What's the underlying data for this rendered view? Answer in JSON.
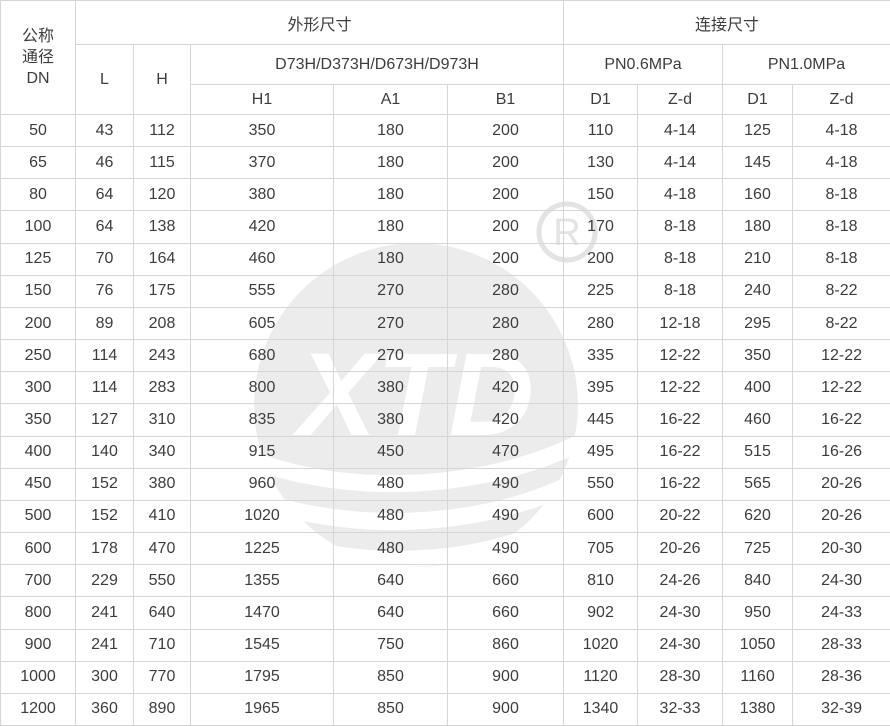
{
  "table": {
    "dn_header": "公称\n通径\nDN",
    "group_outline": "外形尺寸",
    "group_connection": "连接尺寸",
    "col_L": "L",
    "col_H": "H",
    "model_header": "D73H/D373H/D673H/D973H",
    "pn06_header": "PN0.6MPa",
    "pn10_header": "PN1.0MPa",
    "sub_cols": [
      "H1",
      "A1",
      "B1",
      "D1",
      "Z-d",
      "D1",
      "Z-d"
    ],
    "rows": [
      [
        "50",
        "43",
        "112",
        "350",
        "180",
        "200",
        "110",
        "4-14",
        "125",
        "4-18"
      ],
      [
        "65",
        "46",
        "115",
        "370",
        "180",
        "200",
        "130",
        "4-14",
        "145",
        "4-18"
      ],
      [
        "80",
        "64",
        "120",
        "380",
        "180",
        "200",
        "150",
        "4-18",
        "160",
        "8-18"
      ],
      [
        "100",
        "64",
        "138",
        "420",
        "180",
        "200",
        "170",
        "8-18",
        "180",
        "8-18"
      ],
      [
        "125",
        "70",
        "164",
        "460",
        "180",
        "200",
        "200",
        "8-18",
        "210",
        "8-18"
      ],
      [
        "150",
        "76",
        "175",
        "555",
        "270",
        "280",
        "225",
        "8-18",
        "240",
        "8-22"
      ],
      [
        "200",
        "89",
        "208",
        "605",
        "270",
        "280",
        "280",
        "12-18",
        "295",
        "8-22"
      ],
      [
        "250",
        "114",
        "243",
        "680",
        "270",
        "280",
        "335",
        "12-22",
        "350",
        "12-22"
      ],
      [
        "300",
        "114",
        "283",
        "800",
        "380",
        "420",
        "395",
        "12-22",
        "400",
        "12-22"
      ],
      [
        "350",
        "127",
        "310",
        "835",
        "380",
        "420",
        "445",
        "16-22",
        "460",
        "16-22"
      ],
      [
        "400",
        "140",
        "340",
        "915",
        "450",
        "470",
        "495",
        "16-22",
        "515",
        "16-26"
      ],
      [
        "450",
        "152",
        "380",
        "960",
        "480",
        "490",
        "550",
        "16-22",
        "565",
        "20-26"
      ],
      [
        "500",
        "152",
        "410",
        "1020",
        "480",
        "490",
        "600",
        "20-22",
        "620",
        "20-26"
      ],
      [
        "600",
        "178",
        "470",
        "1225",
        "480",
        "490",
        "705",
        "20-26",
        "725",
        "20-30"
      ],
      [
        "700",
        "229",
        "550",
        "1355",
        "640",
        "660",
        "810",
        "24-26",
        "840",
        "24-30"
      ],
      [
        "800",
        "241",
        "640",
        "1470",
        "640",
        "660",
        "902",
        "24-30",
        "950",
        "24-33"
      ],
      [
        "900",
        "241",
        "710",
        "1545",
        "750",
        "860",
        "1020",
        "24-30",
        "1050",
        "28-33"
      ],
      [
        "1000",
        "300",
        "770",
        "1795",
        "850",
        "900",
        "1120",
        "28-30",
        "1160",
        "28-36"
      ],
      [
        "1200",
        "360",
        "890",
        "1965",
        "850",
        "900",
        "1340",
        "32-33",
        "1380",
        "32-39"
      ]
    ]
  },
  "watermark": {
    "logo_text": "XTD",
    "registered_mark": "R",
    "color": "#ececec",
    "mark_color": "#e3e3e3"
  }
}
